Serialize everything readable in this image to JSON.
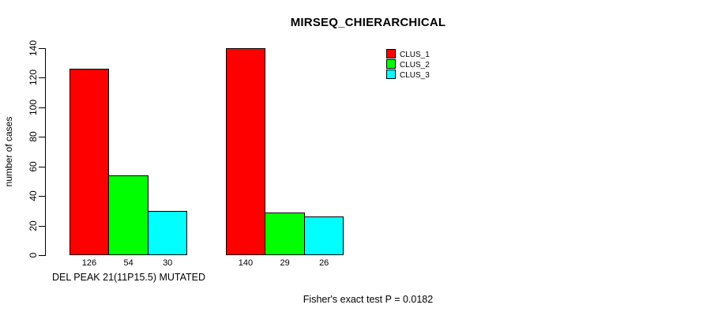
{
  "chart_data": {
    "type": "bar",
    "title": "MIRSEQ_CHIERARCHICAL",
    "ylabel": "number of cases",
    "xlabel": "",
    "ylim": [
      0,
      140
    ],
    "yticks": [
      0,
      20,
      40,
      60,
      80,
      100,
      120,
      140
    ],
    "grid": false,
    "legend_position": "top-right",
    "bar_value_labels": true,
    "series": [
      {
        "name": "CLUS_1",
        "color": "#FF0000"
      },
      {
        "name": "CLUS_2",
        "color": "#00FF00"
      },
      {
        "name": "CLUS_3",
        "color": "#00FFFF"
      }
    ],
    "groups": [
      {
        "label": "DEL PEAK 21(11P15.5) MUTATED",
        "values": [
          126,
          54,
          30
        ]
      },
      {
        "label": "",
        "values": [
          140,
          29,
          26
        ]
      }
    ],
    "footnote": "Fisher's exact test P = 0.0182"
  },
  "colors": {
    "background": "#FFFFFF",
    "axis": "#000000",
    "text": "#000000",
    "bar_border": "#000000"
  }
}
